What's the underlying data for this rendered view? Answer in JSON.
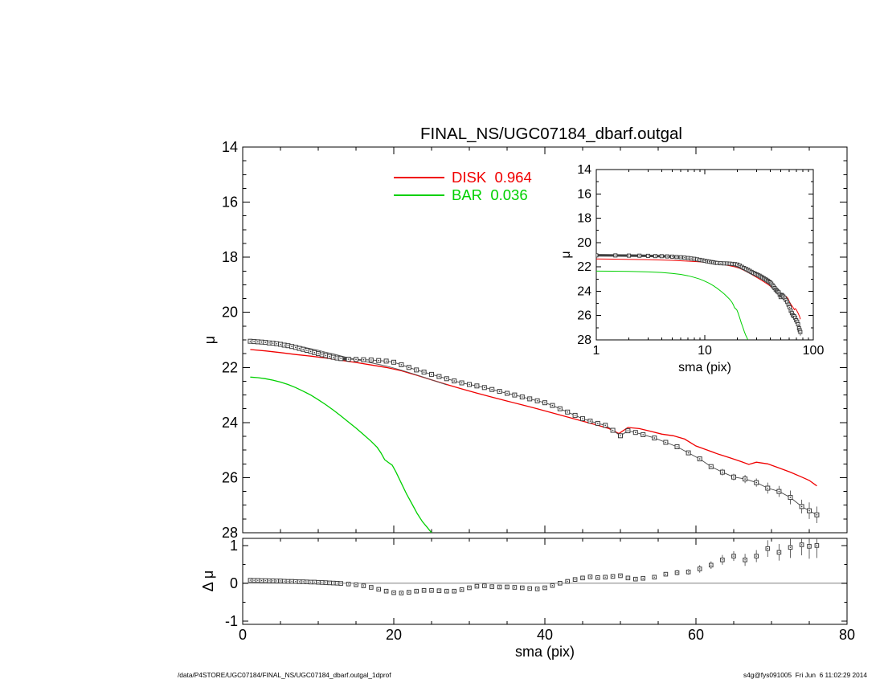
{
  "labels": {
    "mu": "μ",
    "delta_mu": "Δ μ",
    "sma": "sma (pix)"
  },
  "legend": {
    "disk": {
      "label": "DISK  0.964",
      "color": "#f00000"
    },
    "bar": {
      "label": "BAR  0.036",
      "color": "#00d000"
    }
  },
  "colors": {
    "disk": "#f00000",
    "bar": "#00d000",
    "data": "#3d3d3d",
    "total": "#555555",
    "zero_line": "#aaaaaa",
    "frame": "#000000",
    "background": "#ffffff"
  },
  "footer": {
    "left": "/data/P4STORE/UGC07184/FINAL_NS/UGC07184_dbarf.outgal_1dprof",
    "right": "s4g@fys091005  Fri Jun  6 11:02:29 2014"
  },
  "chart_data": {
    "type": "line+scatter",
    "title": "FINAL_NS/UGC07184_dbarf.outgal",
    "fractions": {
      "DISK": 0.964,
      "BAR": 0.036
    },
    "panels": {
      "main": {
        "xlim": [
          0,
          80
        ],
        "ylim": [
          14,
          28
        ],
        "y_inverted": true,
        "xticks": [
          0,
          20,
          40,
          60,
          80
        ],
        "yticks": [
          14,
          16,
          18,
          20,
          22,
          24,
          26,
          28
        ],
        "ylabel": "μ",
        "x": [
          1,
          1.5,
          2,
          2.5,
          3,
          3.5,
          4,
          4.5,
          5,
          5.5,
          6,
          6.5,
          7,
          7.5,
          8,
          8.5,
          9,
          9.5,
          10,
          10.5,
          11,
          11.5,
          12,
          12.5,
          13,
          14,
          15,
          16,
          17,
          18,
          19,
          20,
          21,
          22,
          23,
          24,
          25,
          26,
          27,
          28,
          29,
          30,
          31,
          32,
          33,
          34,
          35,
          36,
          37,
          38,
          39,
          40,
          41,
          42,
          43,
          44,
          45,
          46,
          47,
          48,
          49,
          50,
          51,
          52,
          53,
          54.5,
          56,
          57.5,
          59,
          60.5,
          62,
          63.5,
          65,
          66.5,
          68,
          69.5,
          71,
          72.5,
          74,
          75,
          76
        ],
        "galaxy_mu": [
          21.05,
          21.06,
          21.07,
          21.08,
          21.09,
          21.11,
          21.12,
          21.14,
          21.16,
          21.19,
          21.21,
          21.24,
          21.27,
          21.31,
          21.34,
          21.38,
          21.42,
          21.46,
          21.5,
          21.54,
          21.57,
          21.6,
          21.63,
          21.66,
          21.68,
          21.7,
          21.71,
          21.72,
          21.73,
          21.75,
          21.77,
          21.81,
          21.9,
          22.0,
          22.09,
          22.17,
          22.25,
          22.33,
          22.41,
          22.49,
          22.56,
          22.62,
          22.67,
          22.73,
          22.8,
          22.87,
          22.94,
          23.0,
          23.07,
          23.14,
          23.21,
          23.28,
          23.38,
          23.5,
          23.62,
          23.74,
          23.86,
          23.95,
          24.03,
          24.1,
          24.28,
          24.48,
          24.3,
          24.36,
          24.44,
          24.56,
          24.72,
          24.88,
          25.1,
          25.32,
          25.6,
          25.8,
          25.98,
          26.05,
          26.18,
          26.38,
          26.5,
          26.72,
          27.05,
          27.2,
          27.35
        ],
        "galaxy_err": [
          0,
          0,
          0,
          0,
          0,
          0,
          0,
          0,
          0,
          0,
          0,
          0,
          0,
          0,
          0,
          0,
          0,
          0,
          0,
          0,
          0,
          0,
          0,
          0,
          0,
          0,
          0,
          0,
          0,
          0,
          0,
          0,
          0,
          0,
          0,
          0,
          0,
          0,
          0,
          0,
          0,
          0,
          0,
          0,
          0,
          0,
          0,
          0,
          0,
          0,
          0,
          0,
          0,
          0,
          0,
          0,
          0,
          0,
          0,
          0,
          0,
          0.03,
          0.03,
          0.03,
          0.03,
          0.05,
          0.05,
          0.06,
          0.06,
          0.08,
          0.08,
          0.12,
          0.12,
          0.15,
          0.15,
          0.2,
          0.2,
          0.25,
          0.25,
          0.3,
          0.3
        ],
        "disk": {
          "x": [
            1,
            3,
            5,
            7,
            9,
            11,
            13,
            15,
            17,
            19,
            21,
            23,
            25,
            27,
            29,
            31,
            33,
            35,
            37,
            39,
            41,
            43,
            45,
            47,
            48.5,
            49.8,
            51,
            52.5,
            54,
            55.5,
            57,
            58.5,
            60,
            61.5,
            63,
            64.5,
            66,
            67,
            68,
            69.5,
            71,
            72.5,
            74,
            75,
            76
          ],
          "mu": [
            21.35,
            21.4,
            21.46,
            21.53,
            21.59,
            21.66,
            21.74,
            21.82,
            21.91,
            22.0,
            22.12,
            22.28,
            22.45,
            22.62,
            22.78,
            22.93,
            23.08,
            23.22,
            23.36,
            23.5,
            23.65,
            23.8,
            23.95,
            24.1,
            24.22,
            24.4,
            24.18,
            24.22,
            24.32,
            24.42,
            24.48,
            24.6,
            24.85,
            25.0,
            25.15,
            25.28,
            25.42,
            25.52,
            25.44,
            25.5,
            25.65,
            25.8,
            25.98,
            26.1,
            26.3
          ]
        },
        "bar": {
          "x": [
            1,
            2,
            3,
            4,
            5,
            6,
            7,
            8,
            9,
            10,
            11,
            12,
            13,
            14,
            15,
            16,
            17,
            17.8,
            18.3,
            18.8,
            19.3,
            19.8,
            20.3,
            21,
            21.7,
            22.4,
            23.1,
            23.8,
            24.4,
            25
          ],
          "mu": [
            22.35,
            22.37,
            22.41,
            22.46,
            22.53,
            22.62,
            22.73,
            22.86,
            23.0,
            23.17,
            23.35,
            23.55,
            23.76,
            23.98,
            24.2,
            24.44,
            24.68,
            24.9,
            25.1,
            25.35,
            25.45,
            25.55,
            25.8,
            26.2,
            26.6,
            26.95,
            27.3,
            27.6,
            27.8,
            28.0
          ]
        },
        "total": {
          "x": [
            1,
            2,
            3,
            4,
            5,
            6,
            7,
            8,
            9,
            10,
            11,
            12,
            13,
            14,
            15,
            16,
            17,
            18,
            19,
            20,
            21,
            22,
            23,
            24,
            25,
            26,
            27
          ],
          "mu": [
            20.98,
            21.0,
            21.03,
            21.06,
            21.1,
            21.15,
            21.2,
            21.26,
            21.32,
            21.38,
            21.45,
            21.51,
            21.58,
            21.65,
            21.71,
            21.77,
            21.83,
            21.89,
            21.95,
            22.02,
            22.1,
            22.18,
            22.27,
            22.36,
            22.45,
            22.54,
            22.63
          ]
        }
      },
      "inset": {
        "xscale": "log",
        "xlim": [
          1,
          100
        ],
        "ylim": [
          14,
          28
        ],
        "y_inverted": true,
        "xticks": [
          1,
          10,
          100
        ],
        "yticks": [
          14,
          16,
          18,
          20,
          22,
          24,
          26,
          28
        ],
        "xlabel": "sma (pix)",
        "ylabel": "μ",
        "series": "same-as-main"
      },
      "residual": {
        "xlim": [
          0,
          80
        ],
        "ylim": [
          -1.09,
          1.19
        ],
        "xticks": [
          0,
          20,
          40,
          60,
          80
        ],
        "yticks": [
          -1,
          0,
          1
        ],
        "xlabel": "sma (pix)",
        "ylabel": "Δ μ",
        "x": "same-as-main",
        "dmu": [
          0.08,
          0.075,
          0.075,
          0.07,
          0.07,
          0.065,
          0.065,
          0.06,
          0.06,
          0.055,
          0.05,
          0.05,
          0.045,
          0.04,
          0.04,
          0.035,
          0.03,
          0.03,
          0.025,
          0.02,
          0.015,
          0.01,
          0.005,
          0,
          -0.005,
          -0.02,
          -0.04,
          -0.07,
          -0.11,
          -0.16,
          -0.21,
          -0.25,
          -0.26,
          -0.24,
          -0.21,
          -0.19,
          -0.19,
          -0.2,
          -0.21,
          -0.21,
          -0.17,
          -0.12,
          -0.08,
          -0.07,
          -0.09,
          -0.1,
          -0.1,
          -0.11,
          -0.12,
          -0.14,
          -0.15,
          -0.12,
          -0.06,
          0,
          0.05,
          0.1,
          0.14,
          0.17,
          0.15,
          0.16,
          0.18,
          0.2,
          0.14,
          0.11,
          0.13,
          0.16,
          0.24,
          0.28,
          0.3,
          0.38,
          0.48,
          0.62,
          0.72,
          0.62,
          0.72,
          0.92,
          0.82,
          0.95,
          1.02,
          0.98,
          1.0
        ],
        "err": [
          0.015,
          0.015,
          0.015,
          0.015,
          0.015,
          0.015,
          0.015,
          0.015,
          0.015,
          0.015,
          0.015,
          0.015,
          0.015,
          0.015,
          0.015,
          0.015,
          0.015,
          0.015,
          0.015,
          0.015,
          0.015,
          0.015,
          0.015,
          0.015,
          0.015,
          0.015,
          0.015,
          0.015,
          0.015,
          0.015,
          0.015,
          0.015,
          0.015,
          0.015,
          0.015,
          0.015,
          0.015,
          0.015,
          0.015,
          0.015,
          0.015,
          0.015,
          0.015,
          0.015,
          0.015,
          0.015,
          0.015,
          0.015,
          0.015,
          0.015,
          0.015,
          0.015,
          0.015,
          0.015,
          0.015,
          0.015,
          0.015,
          0.015,
          0.015,
          0.015,
          0.015,
          0.04,
          0.04,
          0.04,
          0.04,
          0.05,
          0.05,
          0.07,
          0.07,
          0.1,
          0.1,
          0.13,
          0.13,
          0.16,
          0.16,
          0.22,
          0.22,
          0.28,
          0.28,
          0.33,
          0.33
        ]
      }
    }
  }
}
